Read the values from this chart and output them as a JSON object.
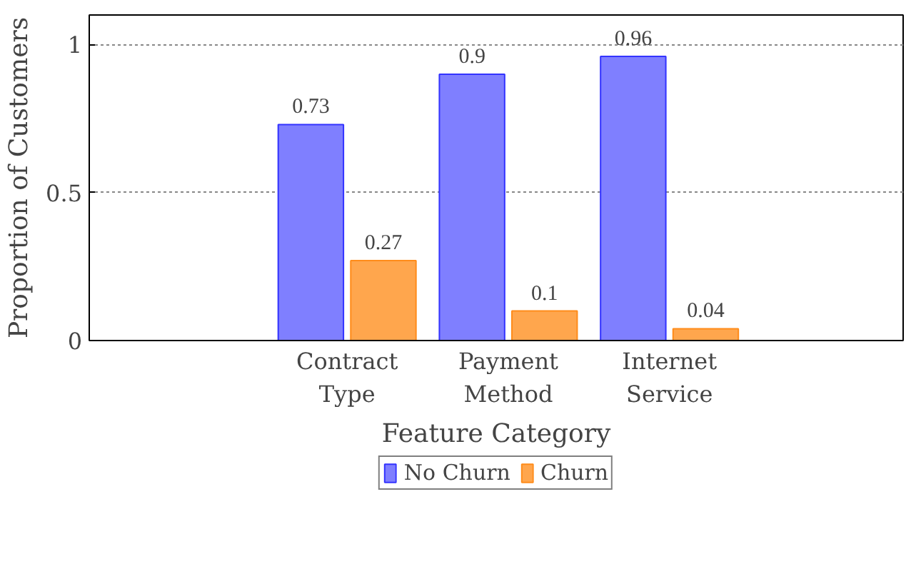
{
  "chart_data": {
    "type": "bar",
    "xlabel": "Feature Category",
    "ylabel": "Proportion of Customers",
    "categories": [
      "Contract\nType",
      "Payment\nMethod",
      "Internet\nService"
    ],
    "series": [
      {
        "name": "No Churn",
        "color": "#7f7fff",
        "values": [
          0.73,
          0.9,
          0.96
        ]
      },
      {
        "name": "Churn",
        "color": "#ffa64d",
        "values": [
          0.27,
          0.1,
          0.04
        ]
      }
    ],
    "ylim": [
      0,
      1.1
    ],
    "yticks": [
      0,
      0.5,
      1
    ],
    "grid": "y",
    "data_labels": true,
    "legend": "bottom"
  }
}
